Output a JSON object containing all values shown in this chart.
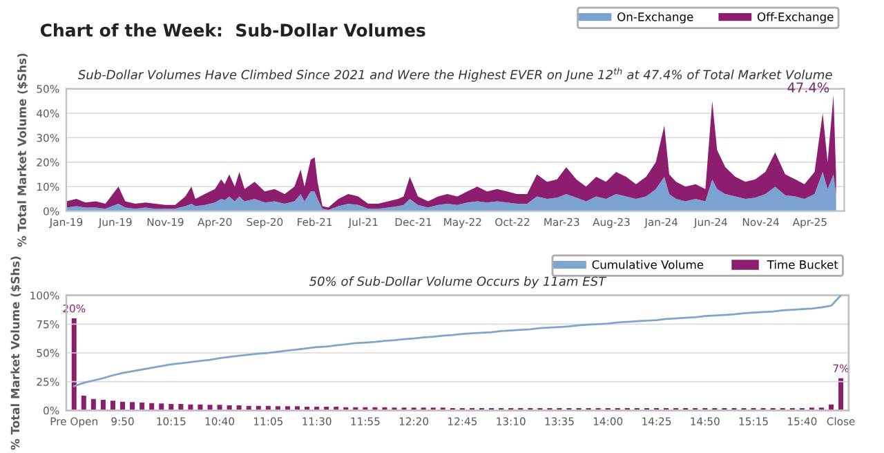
{
  "chart_data": [
    {
      "type": "area",
      "stacked": true,
      "title": "Chart of the Week:  Sub-Dollar Volumes",
      "subtitle": "Sub-Dollar Volumes Have Climbed Since 2021 and Were the Highest EVER on June 12$^{th}$ at 47.4% of Total Market Volume",
      "ylabel": "% Total Market Volume ($Shs)",
      "x": [
        "2019-01-01",
        "2019-02-01",
        "2019-03-01",
        "2019-04-01",
        "2019-05-01",
        "2019-06-10",
        "2019-07-01",
        "2019-08-01",
        "2019-09-01",
        "2019-10-01",
        "2019-11-01",
        "2019-12-01",
        "2020-01-01",
        "2020-01-20",
        "2020-02-01",
        "2020-03-01",
        "2020-04-01",
        "2020-04-20",
        "2020-05-01",
        "2020-05-15",
        "2020-06-01",
        "2020-06-15",
        "2020-07-01",
        "2020-08-01",
        "2020-09-01",
        "2020-10-01",
        "2020-11-01",
        "2020-12-01",
        "2020-12-20",
        "2021-01-01",
        "2021-01-20",
        "2021-02-01",
        "2021-02-10",
        "2021-02-25",
        "2021-03-15",
        "2021-04-15",
        "2021-05-15",
        "2021-06-15",
        "2021-07-15",
        "2021-08-15",
        "2021-09-15",
        "2021-10-15",
        "2021-11-01",
        "2021-11-20",
        "2021-12-15",
        "2022-01-15",
        "2022-02-15",
        "2022-03-15",
        "2022-04-15",
        "2022-05-15",
        "2022-06-15",
        "2022-07-15",
        "2022-08-15",
        "2022-09-15",
        "2022-10-15",
        "2022-11-15",
        "2022-12-15",
        "2023-01-15",
        "2023-02-15",
        "2023-03-15",
        "2023-04-15",
        "2023-05-15",
        "2023-06-15",
        "2023-07-15",
        "2023-08-15",
        "2023-09-15",
        "2023-10-15",
        "2023-11-15",
        "2023-12-15",
        "2024-01-10",
        "2024-01-25",
        "2024-02-15",
        "2024-03-15",
        "2024-04-15",
        "2024-05-15",
        "2024-06-05",
        "2024-06-20",
        "2024-07-15",
        "2024-08-15",
        "2024-09-15",
        "2024-10-15",
        "2024-11-15",
        "2024-12-15",
        "2025-01-15",
        "2025-02-15",
        "2025-03-15",
        "2025-04-15",
        "2025-05-10",
        "2025-05-25",
        "2025-06-12",
        "2025-06-20"
      ],
      "series": [
        {
          "name": "On-Exchange",
          "color": "#7ba3d1",
          "values": [
            1.5,
            2,
            1.5,
            1.5,
            1,
            3,
            1.5,
            1,
            1.5,
            1,
            1,
            1,
            2,
            3,
            2,
            2.5,
            3.5,
            5,
            4.5,
            6,
            4,
            6,
            4,
            5,
            3.5,
            4,
            3,
            4,
            7,
            4,
            8,
            8,
            5,
            1,
            0.5,
            2,
            3,
            2.5,
            1,
            1,
            1.5,
            2,
            2.5,
            5,
            2.5,
            1.5,
            2.5,
            3,
            2.5,
            3.5,
            4,
            3.5,
            4,
            3.5,
            3,
            3,
            6,
            5,
            5.5,
            7,
            5.5,
            4,
            6,
            5,
            7,
            6,
            5,
            6,
            9,
            14,
            7,
            5,
            4,
            5,
            4,
            13,
            9,
            7,
            6,
            5,
            5.5,
            7,
            10,
            6.5,
            6,
            5,
            7,
            16,
            9,
            15,
            7
          ]
        },
        {
          "name": "Off-Exchange",
          "color": "#8c1d6f",
          "values": [
            2.5,
            3,
            2,
            2.5,
            2,
            7,
            2.5,
            2,
            2,
            2,
            1.5,
            1.5,
            4,
            7,
            3,
            4.5,
            5.5,
            8,
            6.5,
            9,
            6,
            10,
            5,
            7,
            4.5,
            5,
            4,
            6,
            10,
            6,
            13,
            14,
            7,
            1,
            1,
            3,
            4,
            3.5,
            2,
            2,
            2.5,
            3,
            3.5,
            9,
            3.5,
            2.5,
            3.5,
            4,
            3.5,
            4.5,
            6,
            4.5,
            5,
            4.5,
            4,
            4,
            9,
            7,
            7.5,
            11,
            7.5,
            6,
            8,
            7,
            9,
            8,
            6,
            8,
            11,
            21,
            8,
            7,
            6,
            6,
            5,
            32,
            16,
            11,
            8,
            7,
            7.5,
            9,
            14,
            8.5,
            7,
            6,
            9,
            24,
            11,
            32.4,
            8
          ]
        }
      ],
      "xlim": [
        "2019-01-01",
        "2025-07-15"
      ],
      "xticks": [
        {
          "value": "2019-01-01",
          "label": "Jan-19"
        },
        {
          "value": "2019-06-01",
          "label": "Jun-19"
        },
        {
          "value": "2019-11-01",
          "label": "Nov-19"
        },
        {
          "value": "2020-04-01",
          "label": "Apr-20"
        },
        {
          "value": "2020-09-01",
          "label": "Sep-20"
        },
        {
          "value": "2021-02-01",
          "label": "Feb-21"
        },
        {
          "value": "2021-07-01",
          "label": "Jul-21"
        },
        {
          "value": "2021-12-01",
          "label": "Dec-21"
        },
        {
          "value": "2022-05-01",
          "label": "May-22"
        },
        {
          "value": "2022-10-01",
          "label": "Oct-22"
        },
        {
          "value": "2023-03-01",
          "label": "Mar-23"
        },
        {
          "value": "2023-08-01",
          "label": "Aug-23"
        },
        {
          "value": "2024-01-01",
          "label": "Jan-24"
        },
        {
          "value": "2024-06-01",
          "label": "Jun-24"
        },
        {
          "value": "2024-11-01",
          "label": "Nov-24"
        },
        {
          "value": "2025-04-01",
          "label": "Apr-25"
        }
      ],
      "ylim": [
        0,
        50
      ],
      "yticks": [
        {
          "value": 0,
          "label": "0%"
        },
        {
          "value": 10,
          "label": "10%"
        },
        {
          "value": 20,
          "label": "20%"
        },
        {
          "value": 30,
          "label": "30%"
        },
        {
          "value": 40,
          "label": "40%"
        },
        {
          "value": 50,
          "label": "50%"
        }
      ],
      "grid": "y",
      "legend": "top right",
      "annotations": [
        {
          "text": "47.4%",
          "x": "2025-06-12",
          "y": 47.4
        }
      ]
    },
    {
      "type": "bar",
      "title": "50% of Sub-Dollar Volume Occurs by 11am EST",
      "ylabel": "% Total Market Volume ($Shs)",
      "categories": [
        "Pre Open",
        null,
        null,
        null,
        null,
        "9:50",
        null,
        null,
        null,
        null,
        "10:15",
        null,
        null,
        null,
        null,
        "10:40",
        null,
        null,
        null,
        null,
        "11:05",
        null,
        null,
        null,
        null,
        "11:30",
        null,
        null,
        null,
        null,
        "11:55",
        null,
        null,
        null,
        null,
        "12:20",
        null,
        null,
        null,
        null,
        "12:45",
        null,
        null,
        null,
        null,
        "13:10",
        null,
        null,
        null,
        null,
        "13:35",
        null,
        null,
        null,
        null,
        "14:00",
        null,
        null,
        null,
        null,
        "14:25",
        null,
        null,
        null,
        null,
        "14:50",
        null,
        null,
        null,
        null,
        "15:15",
        null,
        null,
        null,
        null,
        "15:40",
        null,
        null,
        null,
        "Close"
      ],
      "series": [
        {
          "name": "Cumulative Volume",
          "type": "line",
          "color": "#7fa5cf",
          "values": [
            21,
            24,
            26,
            28,
            30.5,
            32.5,
            34,
            35.5,
            37,
            38.5,
            40,
            41,
            42,
            43,
            44,
            45.5,
            46.5,
            47.5,
            48.5,
            49.3,
            50,
            51,
            52,
            53,
            54,
            55,
            55.5,
            56.5,
            57.5,
            58.5,
            59,
            59.5,
            60.5,
            61,
            62,
            62.5,
            63.5,
            64,
            65,
            65.5,
            66.5,
            67,
            67.5,
            68,
            69,
            69.5,
            70,
            70.5,
            71.5,
            72,
            72.5,
            73,
            74,
            74.5,
            75,
            75.5,
            76.5,
            77,
            77.5,
            78,
            78.5,
            79.5,
            80,
            80.5,
            81,
            82,
            82.5,
            83,
            83.5,
            84.5,
            85,
            85.5,
            86,
            87,
            87.5,
            88,
            88.5,
            89.5,
            91,
            100
          ]
        },
        {
          "name": "Time Bucket",
          "type": "bar",
          "axis": "y2",
          "color": "#8b1f6e",
          "values": [
            20,
            3.2,
            2.5,
            2.3,
            2.1,
            1.9,
            1.8,
            1.7,
            1.6,
            1.5,
            1.4,
            1.4,
            1.3,
            1.3,
            1.2,
            1.2,
            1.1,
            1.1,
            1,
            1,
            1,
            0.9,
            0.9,
            0.9,
            0.8,
            0.8,
            0.8,
            0.8,
            0.7,
            0.7,
            0.7,
            0.7,
            0.7,
            0.6,
            0.6,
            0.6,
            0.6,
            0.6,
            0.6,
            0.5,
            0.5,
            0.5,
            0.5,
            0.5,
            0.5,
            0.5,
            0.5,
            0.5,
            0.5,
            0.5,
            0.5,
            0.5,
            0.5,
            0.5,
            0.5,
            0.5,
            0.5,
            0.5,
            0.5,
            0.5,
            0.5,
            0.5,
            0.5,
            0.5,
            0.5,
            0.5,
            0.5,
            0.5,
            0.5,
            0.5,
            0.5,
            0.5,
            0.5,
            0.5,
            0.5,
            0.5,
            0.6,
            0.6,
            1.3,
            7
          ],
          "value_labels": [
            "20%",
            null,
            null,
            null,
            null,
            null,
            null,
            null,
            null,
            null,
            null,
            null,
            null,
            null,
            null,
            null,
            null,
            null,
            null,
            null,
            null,
            null,
            null,
            null,
            null,
            null,
            null,
            null,
            null,
            null,
            null,
            null,
            null,
            null,
            null,
            null,
            null,
            null,
            null,
            null,
            null,
            null,
            null,
            null,
            null,
            null,
            null,
            null,
            null,
            null,
            null,
            null,
            null,
            null,
            null,
            null,
            null,
            null,
            null,
            null,
            null,
            null,
            null,
            null,
            null,
            null,
            null,
            null,
            null,
            null,
            null,
            null,
            null,
            null,
            null,
            null,
            null,
            null,
            null,
            "7%"
          ]
        }
      ],
      "ylim": [
        0,
        100
      ],
      "yticks": [
        {
          "value": 0,
          "label": "0%"
        },
        {
          "value": 25,
          "label": "25%"
        },
        {
          "value": 50,
          "label": "50%"
        },
        {
          "value": 75,
          "label": "75%"
        },
        {
          "value": 100,
          "label": "100%"
        }
      ],
      "y2lim": [
        0,
        25
      ],
      "grid": "y",
      "legend": "top right"
    }
  ]
}
